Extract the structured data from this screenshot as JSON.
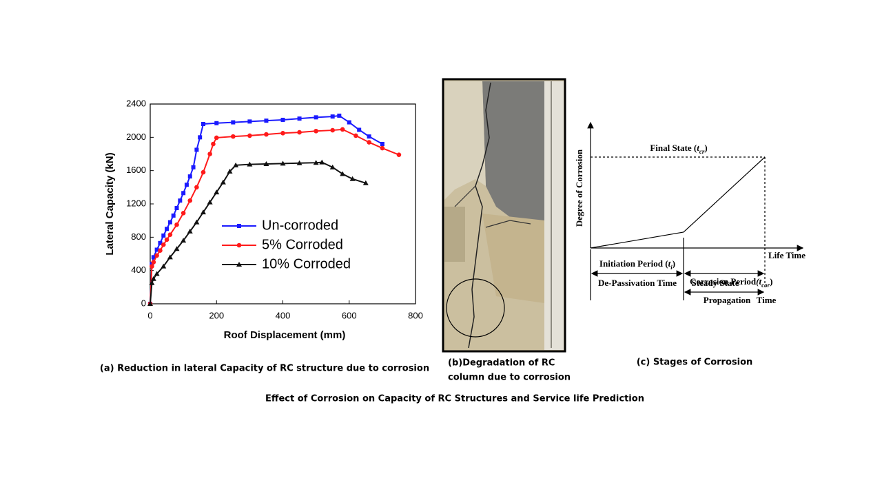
{
  "chart_data": {
    "type": "line",
    "x_label": "Roof Displacement (mm)",
    "y_label": "Lateral Capacity (kN)",
    "xlim": [
      0,
      800
    ],
    "xticks": [
      0,
      200,
      400,
      600,
      800
    ],
    "ylim": [
      0,
      2400
    ],
    "yticks": [
      0,
      400,
      800,
      1200,
      1600,
      2000,
      2400
    ],
    "grid": false,
    "legend": "center",
    "series": [
      {
        "name": "Un-corroded",
        "color": "#1a1aff",
        "marker": "square",
        "x": [
          0,
          5,
          10,
          20,
          30,
          40,
          50,
          60,
          70,
          80,
          90,
          100,
          110,
          120,
          130,
          140,
          150,
          160,
          200,
          250,
          300,
          350,
          400,
          450,
          500,
          550,
          570,
          600,
          630,
          660,
          700
        ],
        "values": [
          0,
          480,
          560,
          650,
          730,
          820,
          900,
          980,
          1060,
          1150,
          1240,
          1330,
          1430,
          1530,
          1640,
          1850,
          2000,
          2160,
          2170,
          2180,
          2190,
          2200,
          2210,
          2225,
          2240,
          2250,
          2260,
          2180,
          2090,
          2010,
          1920
        ]
      },
      {
        "name": "5% Corroded",
        "color": "#ff1a1a",
        "marker": "circle",
        "x": [
          0,
          5,
          10,
          20,
          30,
          40,
          50,
          60,
          80,
          100,
          120,
          140,
          160,
          180,
          190,
          200,
          250,
          300,
          350,
          400,
          450,
          500,
          550,
          580,
          620,
          660,
          700,
          750
        ],
        "values": [
          0,
          450,
          500,
          580,
          640,
          710,
          770,
          830,
          950,
          1090,
          1240,
          1400,
          1580,
          1800,
          1920,
          1995,
          2010,
          2020,
          2035,
          2050,
          2060,
          2075,
          2085,
          2095,
          2020,
          1940,
          1870,
          1790
        ]
      },
      {
        "name": "10% Corroded",
        "color": "#111111",
        "marker": "triangle",
        "x": [
          0,
          5,
          10,
          20,
          40,
          60,
          80,
          100,
          120,
          140,
          160,
          180,
          200,
          220,
          240,
          258,
          300,
          350,
          400,
          450,
          500,
          518,
          550,
          580,
          610,
          650
        ],
        "values": [
          0,
          250,
          300,
          360,
          450,
          560,
          660,
          760,
          870,
          980,
          1100,
          1220,
          1340,
          1460,
          1590,
          1665,
          1675,
          1680,
          1685,
          1690,
          1695,
          1700,
          1640,
          1560,
          1500,
          1450
        ]
      }
    ]
  },
  "captions": {
    "a": "(a) Reduction in lateral Capacity of RC structure due to corrosion",
    "b": [
      "(b)Degradation of RC",
      "column due to corrosion"
    ],
    "c": "(c) Stages of Corrosion",
    "main": "Effect of Corrosion on Capacity of RC Structures and Service life Prediction"
  },
  "diagram": {
    "y_axis": "Degree of Corrosion",
    "x_axis": "Life Time",
    "final_state": {
      "prefix": "Final State (",
      "symbol": "t",
      "sub": "cr",
      "suffix": ")"
    },
    "initiation": {
      "prefix": "Initiation Period (",
      "symbol": "t",
      "sub": "i",
      "suffix": ")"
    },
    "depassivation": "De-Passivation Time",
    "steady": "Steady State",
    "corrosion_period": {
      "prefix": "Corrosion Period",
      "symbol": "(t",
      "sub": "cor",
      "suffix": ")"
    },
    "propagation": "Propagation",
    "time": "Time"
  }
}
